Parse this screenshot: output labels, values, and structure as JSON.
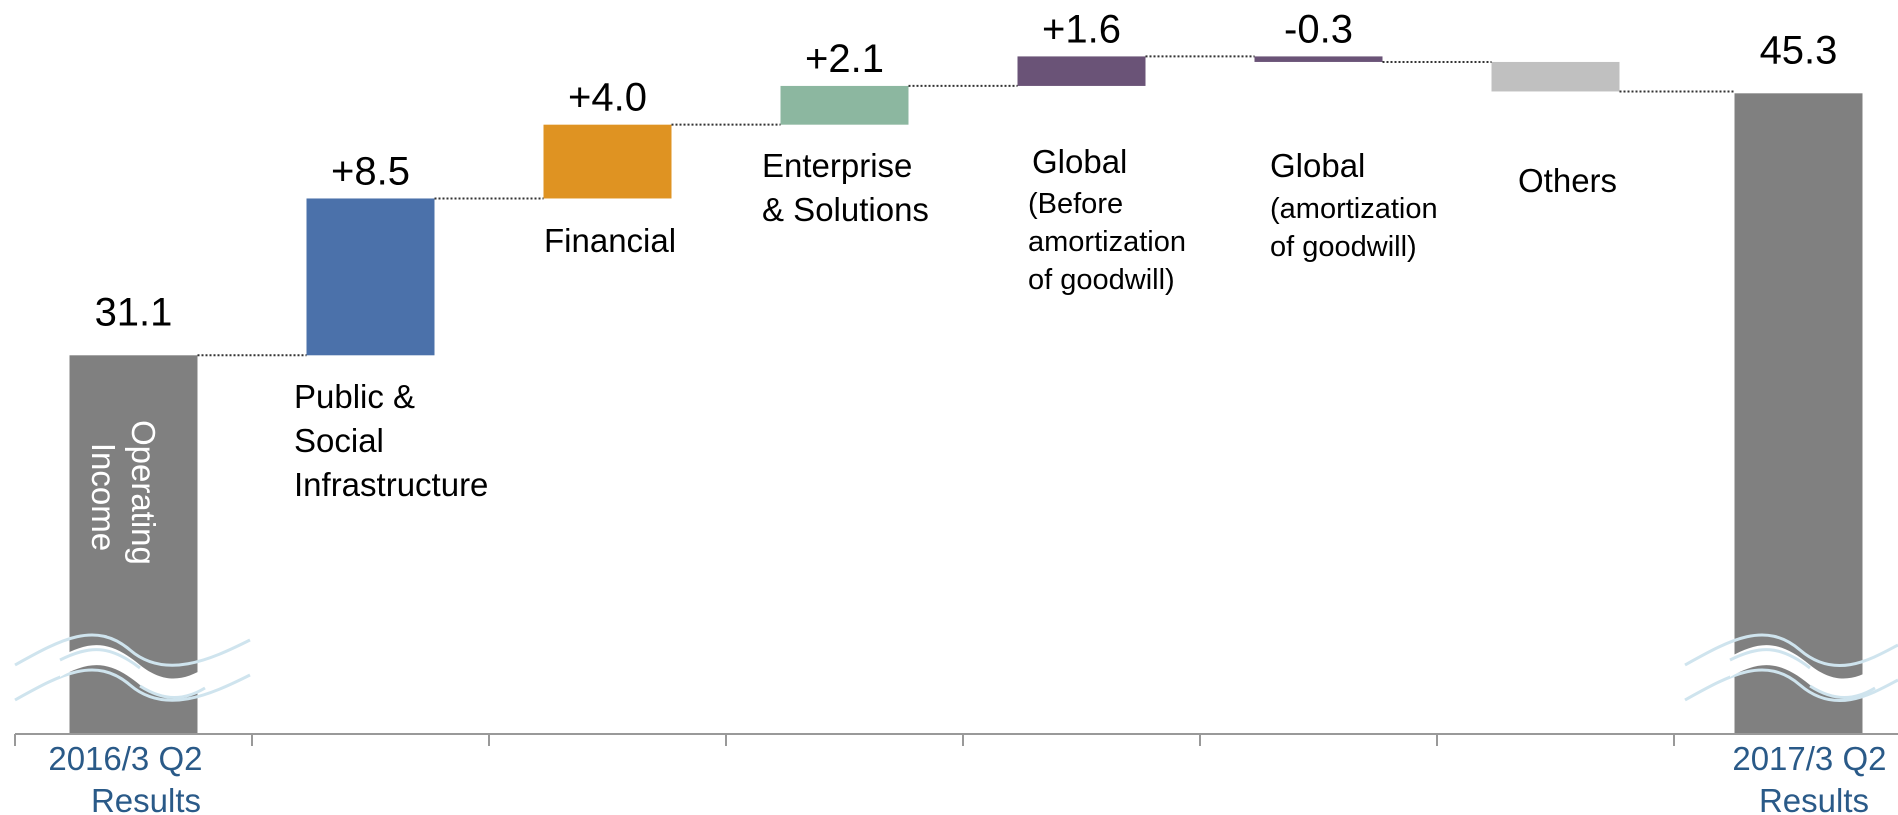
{
  "chart_data": {
    "type": "bar",
    "subtype": "waterfall",
    "start": {
      "name": "2016/3 Q2 Results",
      "value": 31.1,
      "label": "31.1",
      "color": "#808080"
    },
    "end": {
      "name": "2017/3 Q2 Results",
      "value": 45.3,
      "label": "45.3",
      "color": "#808080"
    },
    "steps": [
      {
        "category": "Public & Social Infrastructure",
        "value": 8.5,
        "label": "+8.5",
        "color": "#4b71aa"
      },
      {
        "category": "Financial",
        "value": 4.0,
        "label": "+4.0",
        "color": "#df9322"
      },
      {
        "category": "Enterprise & Solutions",
        "value": 2.1,
        "label": "+2.1",
        "color": "#8cb7a0"
      },
      {
        "category": "Global (Before amortization of goodwill)",
        "value": 1.6,
        "label": "+1.6",
        "color": "#6a5377"
      },
      {
        "category": "Global (amortization of goodwill)",
        "value": -0.3,
        "label": "-0.3",
        "color": "#6a5377"
      },
      {
        "category": "Others",
        "value": -1.6,
        "label": "",
        "color": "#c0c0c0"
      }
    ],
    "bar_inner_label": "Operating Income",
    "axis_break": true,
    "grid": false
  },
  "labels": {
    "start_axis": [
      "2016/3 Q2",
      "Results"
    ],
    "end_axis": [
      "2017/3 Q2",
      "Results"
    ],
    "bar_inner": [
      "Operating",
      "Income"
    ],
    "public": [
      "Public &",
      "Social",
      "Infrastructure"
    ],
    "financial": [
      "Financial"
    ],
    "enterprise": [
      "Enterprise",
      "&  Solutions"
    ],
    "global_before": [
      "Global",
      "(Before",
      "amortization",
      "of goodwill)"
    ],
    "global_amort": [
      "Global",
      "(amortization",
      "of goodwill)"
    ],
    "others": [
      "Others"
    ]
  }
}
